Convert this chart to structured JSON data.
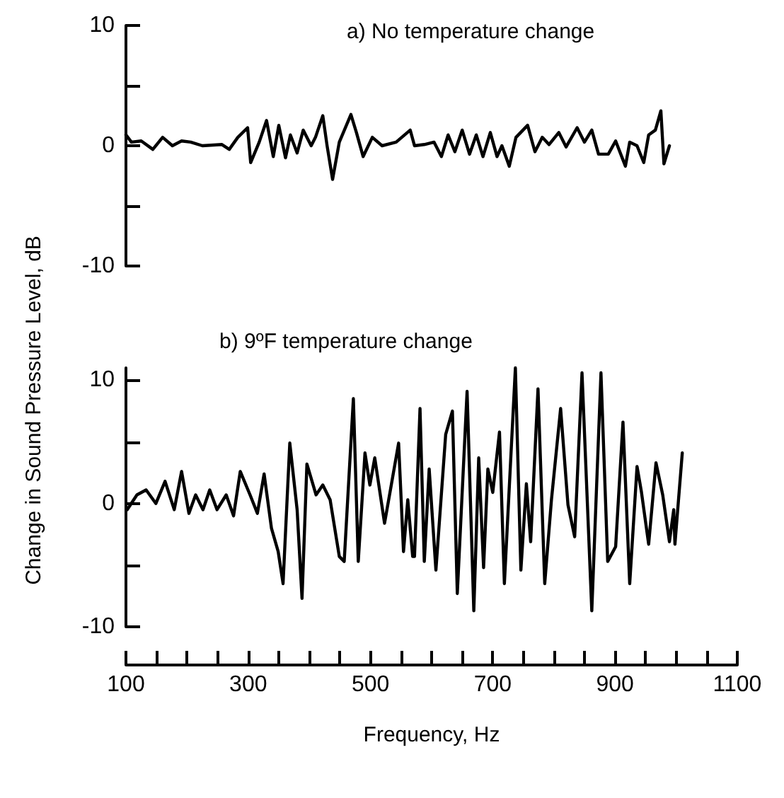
{
  "chart_data": [
    {
      "type": "line",
      "title": "a) No temperature change",
      "color": "#000000",
      "marker": "none",
      "line_style": "solid",
      "tick_labels": "y",
      "x": [
        100,
        109,
        125,
        144,
        160,
        176,
        191,
        206,
        225,
        257,
        269,
        283,
        299,
        304,
        318,
        330,
        341,
        350,
        361,
        369,
        380,
        390,
        403,
        410,
        422,
        429,
        438,
        449,
        468,
        477,
        488,
        503,
        519,
        542,
        565,
        572,
        588,
        604,
        616,
        627,
        638,
        650,
        662,
        673,
        684,
        696,
        707,
        715,
        727,
        738,
        757,
        769,
        781,
        792,
        808,
        820,
        838,
        850,
        862,
        873,
        889,
        901,
        917,
        924,
        936,
        947,
        955,
        966,
        975,
        980,
        989
      ],
      "values": [
        0.9,
        0.3,
        0.4,
        -0.3,
        0.7,
        0,
        0.4,
        0.3,
        0,
        0.1,
        -0.3,
        0.7,
        1.5,
        -1.4,
        0.3,
        2.1,
        -0.9,
        1.7,
        -1,
        0.9,
        -0.6,
        1.3,
        0,
        0.7,
        2.5,
        0,
        -2.8,
        0.3,
        2.6,
        1.1,
        -0.9,
        0.7,
        0,
        0.3,
        1.3,
        0,
        0.1,
        0.3,
        -0.9,
        0.9,
        -0.5,
        1.3,
        -0.7,
        0.9,
        -0.9,
        1.1,
        -0.9,
        0,
        -1.7,
        0.7,
        1.7,
        -0.5,
        0.7,
        0.1,
        1.1,
        -0.1,
        1.5,
        0.3,
        1.3,
        -0.7,
        -0.7,
        0.4,
        -1.7,
        0.3,
        0,
        -1.4,
        0.9,
        1.3,
        2.9,
        -1.5,
        0
      ],
      "xlim": [
        100,
        1100
      ],
      "ylim": [
        -10,
        10
      ],
      "yticks": [
        -10,
        0,
        10
      ]
    },
    {
      "type": "line",
      "title": "b) 9ºF temperature change",
      "xlabel": "Frequency, Hz",
      "ylabel": "Change in Sound Pressure Level, dB",
      "color": "#000000",
      "marker": "none",
      "line_style": "solid",
      "x": [
        102,
        118,
        133,
        149,
        164,
        179,
        191,
        203,
        214,
        226,
        237,
        249,
        264,
        276,
        287,
        303,
        315,
        326,
        338,
        349,
        357,
        368,
        380,
        388,
        396,
        411,
        422,
        434,
        449,
        457,
        472,
        480,
        491,
        499,
        507,
        523,
        534,
        546,
        554,
        561,
        569,
        572,
        581,
        588,
        596,
        607,
        623,
        634,
        642,
        658,
        669,
        677,
        685,
        692,
        700,
        711,
        719,
        737,
        746,
        755,
        762,
        774,
        785,
        796,
        811,
        823,
        834,
        846,
        862,
        877,
        888,
        901,
        913,
        924,
        936,
        943,
        955,
        967,
        978,
        989,
        996,
        998,
        1010
      ],
      "values": [
        -0.5,
        0.7,
        1.1,
        0,
        1.8,
        -0.5,
        2.6,
        -0.8,
        0.7,
        -0.5,
        1.1,
        -0.5,
        0.7,
        -1,
        2.6,
        0.7,
        -0.8,
        2.4,
        -2,
        -3.9,
        -6.5,
        4.9,
        -0.5,
        -7.7,
        3.2,
        0.7,
        1.5,
        0.3,
        -4.3,
        -4.7,
        8.5,
        -4.7,
        4.1,
        1.5,
        3.7,
        -1.6,
        1.5,
        4.9,
        -3.9,
        0.3,
        -4.3,
        -4.3,
        7.7,
        -4.7,
        2.8,
        -5.4,
        5.6,
        7.5,
        -7.3,
        9.1,
        -8.7,
        3.7,
        -5.2,
        2.8,
        0.9,
        5.8,
        -6.5,
        11,
        -5.4,
        1.6,
        -3.1,
        9.3,
        -6.5,
        0.3,
        7.7,
        -0.1,
        -2.7,
        10.6,
        -8.7,
        10.6,
        -4.7,
        -3.5,
        6.6,
        -6.5,
        3,
        1,
        -3.3,
        3.3,
        0.7,
        -3.1,
        -0.5,
        -3.3,
        4.1
      ],
      "xlim": [
        100,
        1100
      ],
      "ylim": [
        -10,
        11
      ],
      "xticks": [
        100,
        300,
        500,
        700,
        900,
        1100
      ],
      "yticks": [
        -10,
        0,
        10
      ]
    }
  ]
}
